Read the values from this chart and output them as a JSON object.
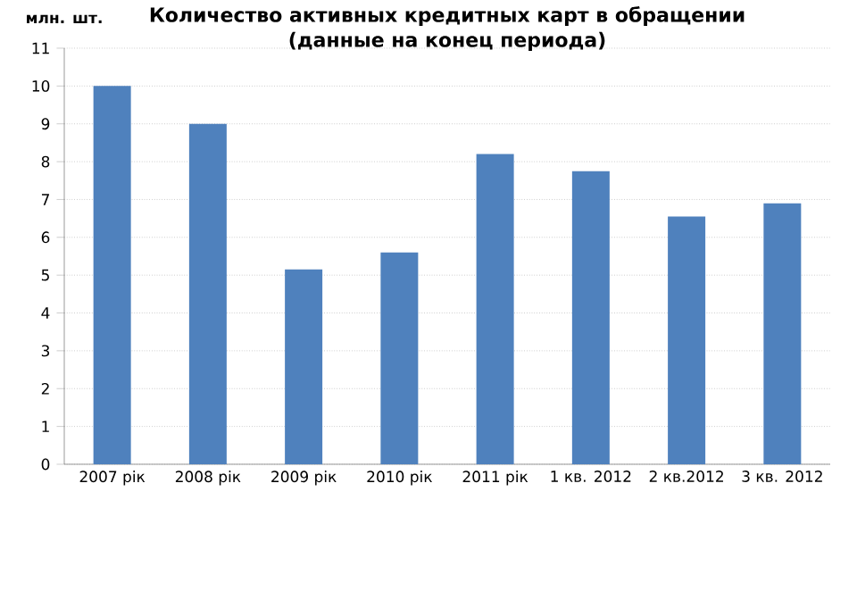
{
  "chart_data": {
    "type": "bar",
    "title": "Количество активных кредитных карт в обращении\n(данные на конец периода)",
    "ylabel": "млн. шт.",
    "categories": [
      "2007 рік",
      "2008 рік",
      "2009 рік",
      "2010 рік",
      "2011 рік",
      "1 кв. 2012",
      "2 кв.2012",
      "3 кв. 2012"
    ],
    "values": [
      10.0,
      9.0,
      5.15,
      5.6,
      8.2,
      7.75,
      6.55,
      6.9
    ],
    "color": "#4f81bd",
    "ylim": [
      0,
      11
    ],
    "yticks": [
      0,
      1,
      2,
      3,
      4,
      5,
      6,
      7,
      8,
      9,
      10,
      11
    ],
    "grid": "y"
  }
}
